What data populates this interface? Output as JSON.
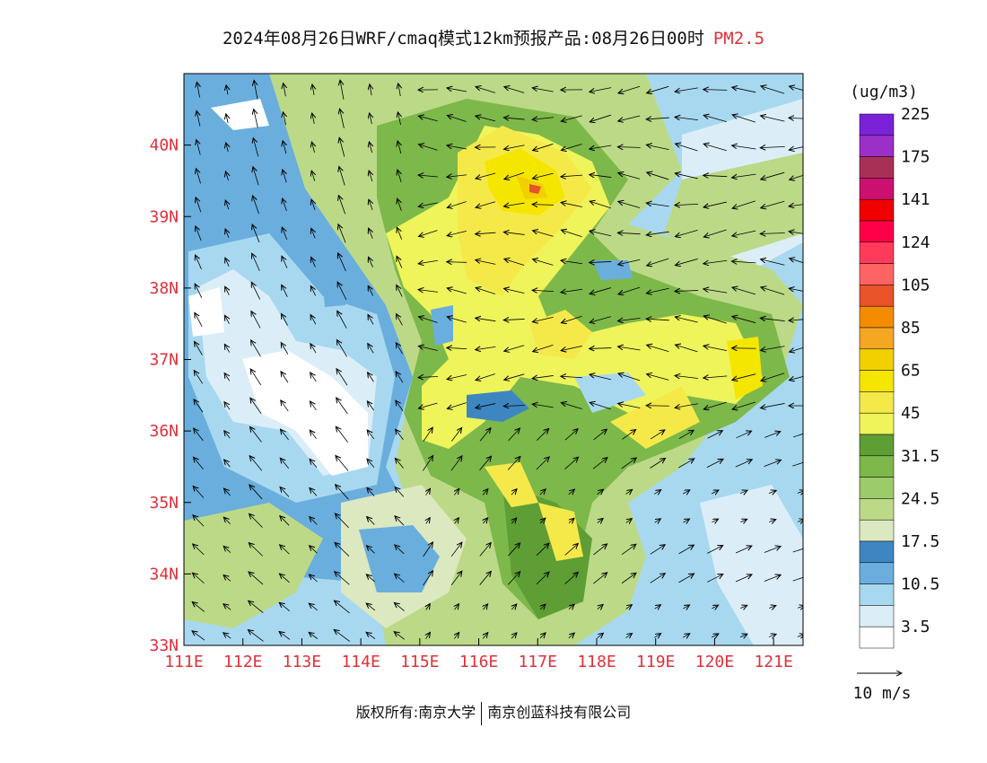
{
  "title": {
    "main": "2024年08月26日WRF/cmaq模式12km预报产品:08月26日00时",
    "species": "PM2.5"
  },
  "map": {
    "lon_range": [
      111,
      121.5
    ],
    "lat_range": [
      33,
      41
    ],
    "x_ticks": [
      "111E",
      "112E",
      "113E",
      "114E",
      "115E",
      "116E",
      "117E",
      "118E",
      "119E",
      "120E",
      "121E"
    ],
    "y_ticks": [
      "33N",
      "34N",
      "35N",
      "36N",
      "37N",
      "38N",
      "39N",
      "40N"
    ]
  },
  "legend": {
    "unit": "(ug/m3)",
    "colors": [
      "#ffffff",
      "#dbeef8",
      "#a8d8f0",
      "#6aaedd",
      "#3d86c2",
      "#dce8bf",
      "#bcd987",
      "#9ccb6a",
      "#7db84a",
      "#5e9e35",
      "#eef45a",
      "#f5e94a",
      "#f5e600",
      "#f2d000",
      "#f5a623",
      "#f58b00",
      "#e8532a",
      "#ff6464",
      "#ff3a5a",
      "#ff0048",
      "#f00000",
      "#cc1070",
      "#a83057",
      "#9b30c8",
      "#7b22d8"
    ],
    "labels": [
      "3.5",
      "10.5",
      "17.5",
      "24.5",
      "31.5",
      "45",
      "65",
      "85",
      "105",
      "124",
      "141",
      "175",
      "225"
    ]
  },
  "wind_key": {
    "label": "10 m/s"
  },
  "footer": {
    "left": "版权所有:南京大学",
    "right": "南京创蓝科技有限公司"
  }
}
